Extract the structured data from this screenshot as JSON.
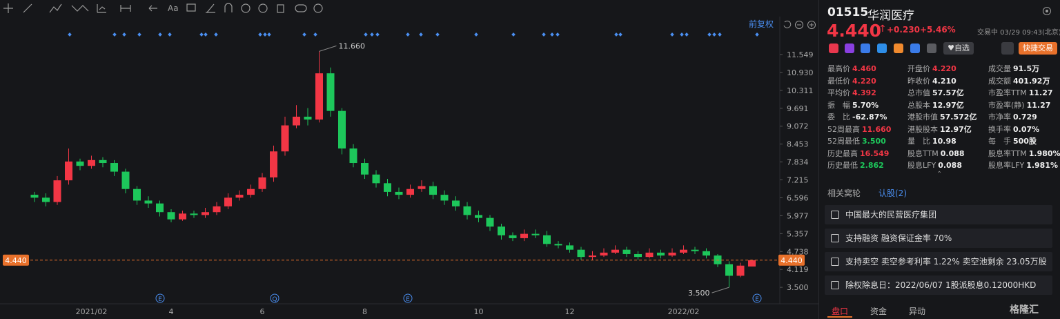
{
  "chart_data": {
    "type": "candlestick",
    "categories": [
      null,
      null,
      null,
      null,
      null,
      "2021/02",
      null,
      null,
      null,
      null,
      null,
      null,
      "4",
      null,
      null,
      null,
      null,
      null,
      null,
      null,
      "6",
      null,
      null,
      null,
      null,
      null,
      null,
      null,
      null,
      "8",
      null,
      null,
      null,
      null,
      null,
      null,
      null,
      null,
      null,
      "10",
      null,
      null,
      null,
      null,
      null,
      null,
      null,
      "12",
      null,
      null,
      null,
      null,
      null,
      null,
      null,
      null,
      null,
      "2022/02",
      null,
      null,
      null,
      null,
      null,
      null
    ],
    "open": [
      6.7,
      6.6,
      6.45,
      7.2,
      7.85,
      7.7,
      7.9,
      7.8,
      7.5,
      6.9,
      6.5,
      6.4,
      6.1,
      5.85,
      6.05,
      6.0,
      6.1,
      6.3,
      6.6,
      6.7,
      6.9,
      7.3,
      8.2,
      9.1,
      9.4,
      9.3,
      10.9,
      9.6,
      8.3,
      7.8,
      7.4,
      7.1,
      6.8,
      6.7,
      6.9,
      7.0,
      6.7,
      6.5,
      6.3,
      6.0,
      5.9,
      5.6,
      5.3,
      5.2,
      5.35,
      5.3,
      5.0,
      4.95,
      4.8,
      4.55,
      4.6,
      4.7,
      4.8,
      4.65,
      4.55,
      4.7,
      4.6,
      4.7,
      4.8,
      4.75,
      4.6,
      4.3,
      3.9,
      4.22
    ],
    "high": [
      6.8,
      6.75,
      7.35,
      8.3,
      7.95,
      8.05,
      8.0,
      7.9,
      7.6,
      7.0,
      6.65,
      6.5,
      6.2,
      6.15,
      6.15,
      6.25,
      6.45,
      6.75,
      6.85,
      7.05,
      7.45,
      8.4,
      9.4,
      9.8,
      9.7,
      11.66,
      11.1,
      9.7,
      8.45,
      7.95,
      7.55,
      7.25,
      6.95,
      7.05,
      7.2,
      7.15,
      6.85,
      6.65,
      6.45,
      6.15,
      6.0,
      5.7,
      5.4,
      5.5,
      5.5,
      5.45,
      5.1,
      5.05,
      4.9,
      4.75,
      4.85,
      4.95,
      4.9,
      4.75,
      4.85,
      4.8,
      4.85,
      4.95,
      4.9,
      4.85,
      4.65,
      4.4,
      4.35,
      4.46
    ],
    "low": [
      6.45,
      6.3,
      6.35,
      7.05,
      7.55,
      7.6,
      7.65,
      7.35,
      6.75,
      6.35,
      6.25,
      5.95,
      5.75,
      5.8,
      5.9,
      5.9,
      6.0,
      6.2,
      6.5,
      6.6,
      6.8,
      7.15,
      8.05,
      9.0,
      9.1,
      9.2,
      9.4,
      8.1,
      7.65,
      7.25,
      6.95,
      6.65,
      6.55,
      6.6,
      6.8,
      6.55,
      6.35,
      6.15,
      5.85,
      5.75,
      5.45,
      5.15,
      5.1,
      5.1,
      5.2,
      4.9,
      4.85,
      4.7,
      4.45,
      4.45,
      4.55,
      4.65,
      4.55,
      4.45,
      4.5,
      4.5,
      4.55,
      4.65,
      4.65,
      4.5,
      4.2,
      3.5,
      3.85,
      4.22
    ],
    "close": [
      6.6,
      6.45,
      7.2,
      7.85,
      7.7,
      7.9,
      7.8,
      7.5,
      6.9,
      6.5,
      6.4,
      6.1,
      5.85,
      6.05,
      6.0,
      6.1,
      6.3,
      6.6,
      6.7,
      6.9,
      7.3,
      8.2,
      9.1,
      9.4,
      9.3,
      10.9,
      9.6,
      8.3,
      7.8,
      7.4,
      7.1,
      6.8,
      6.7,
      6.9,
      7.0,
      6.7,
      6.5,
      6.3,
      6.0,
      5.9,
      5.6,
      5.3,
      5.2,
      5.35,
      5.3,
      5.0,
      4.95,
      4.8,
      4.55,
      4.6,
      4.7,
      4.8,
      4.65,
      4.55,
      4.7,
      4.6,
      4.7,
      4.8,
      4.75,
      4.6,
      4.3,
      3.9,
      4.25,
      4.44
    ],
    "up_color": "#f23645",
    "down_color": "#1dc75b",
    "ylim": [
      2.93,
      12.48
    ],
    "yticks": [
      {
        "value": 3.5,
        "label": "3.500"
      },
      4.119,
      4.738,
      5.357,
      5.977,
      6.596,
      7.215,
      7.834,
      8.453,
      9.072,
      9.691,
      10.311,
      {
        "value": 10.93,
        "label": "10.930"
      },
      11.549
    ],
    "grid": false,
    "price_line": {
      "value": 4.44,
      "label": "4.440",
      "color": "#e8712b"
    },
    "annotations": [
      {
        "value": 11.66,
        "label": "11.660"
      },
      {
        "value": 3.5,
        "label": "3.500"
      }
    ],
    "adjust_label": "前复权",
    "event_markers": [
      "E",
      "Q",
      "E",
      "E"
    ]
  },
  "toolbar": {
    "text_tool": "Aa"
  },
  "quote": {
    "code": "01515",
    "name": "华润医疗",
    "price": "4.440",
    "change": "+0.230",
    "change_pct": "+5.46%",
    "status": "交易中 03/29 09:43(北京)",
    "watch": "自选",
    "quick_trade": "快捷交易",
    "stats": [
      [
        [
          "最高价",
          "4.460"
        ],
        [
          "开盘价",
          "4.220"
        ],
        [
          "成交量",
          "91.5万"
        ]
      ],
      [
        [
          "最低价",
          "4.220"
        ],
        [
          "昨收价",
          "4.210"
        ],
        [
          "成交额",
          "401.92万"
        ]
      ],
      [
        [
          "平均价",
          "4.392"
        ],
        [
          "总市值",
          "57.57亿"
        ],
        [
          "市盈率TTM",
          "11.27"
        ]
      ],
      [
        [
          "振　幅",
          "5.70%"
        ],
        [
          "总股本",
          "12.97亿"
        ],
        [
          "市盈率(静)",
          "11.27"
        ]
      ],
      [
        [
          "委　比",
          "-62.87%"
        ],
        [
          "港股市值",
          "57.572亿"
        ],
        [
          "市净率",
          "0.729"
        ]
      ],
      [
        [
          "52周最高",
          "11.660"
        ],
        [
          "港股股本",
          "12.97亿"
        ],
        [
          "换手率",
          "0.07%"
        ]
      ],
      [
        [
          "52周最低",
          "3.500"
        ],
        [
          "量　比",
          "10.98"
        ],
        [
          "每　手",
          "500股"
        ]
      ],
      [
        [
          "历史最高",
          "16.549"
        ],
        [
          "股息TTM",
          "0.088"
        ],
        [
          "股息率TTM",
          "1.980%"
        ]
      ],
      [
        [
          "历史最低",
          "2.862"
        ],
        [
          "股息LFY",
          "0.088"
        ],
        [
          "股息率LFY",
          "1.981%"
        ]
      ]
    ],
    "warrants_label": "相关窝轮",
    "warrants_link": "认股(2)",
    "notes": [
      "中国最大的民营医疗集团",
      "支持融资 融资保证金率 70%",
      "支持卖空 卖空参考利率 1.22% 卖空池剩余 23.05万股",
      "除权除息日：2022/06/07 1股派股息0.12000HKD"
    ],
    "tabs": [
      "盘口",
      "资金",
      "异动"
    ],
    "brand": "格隆汇"
  }
}
